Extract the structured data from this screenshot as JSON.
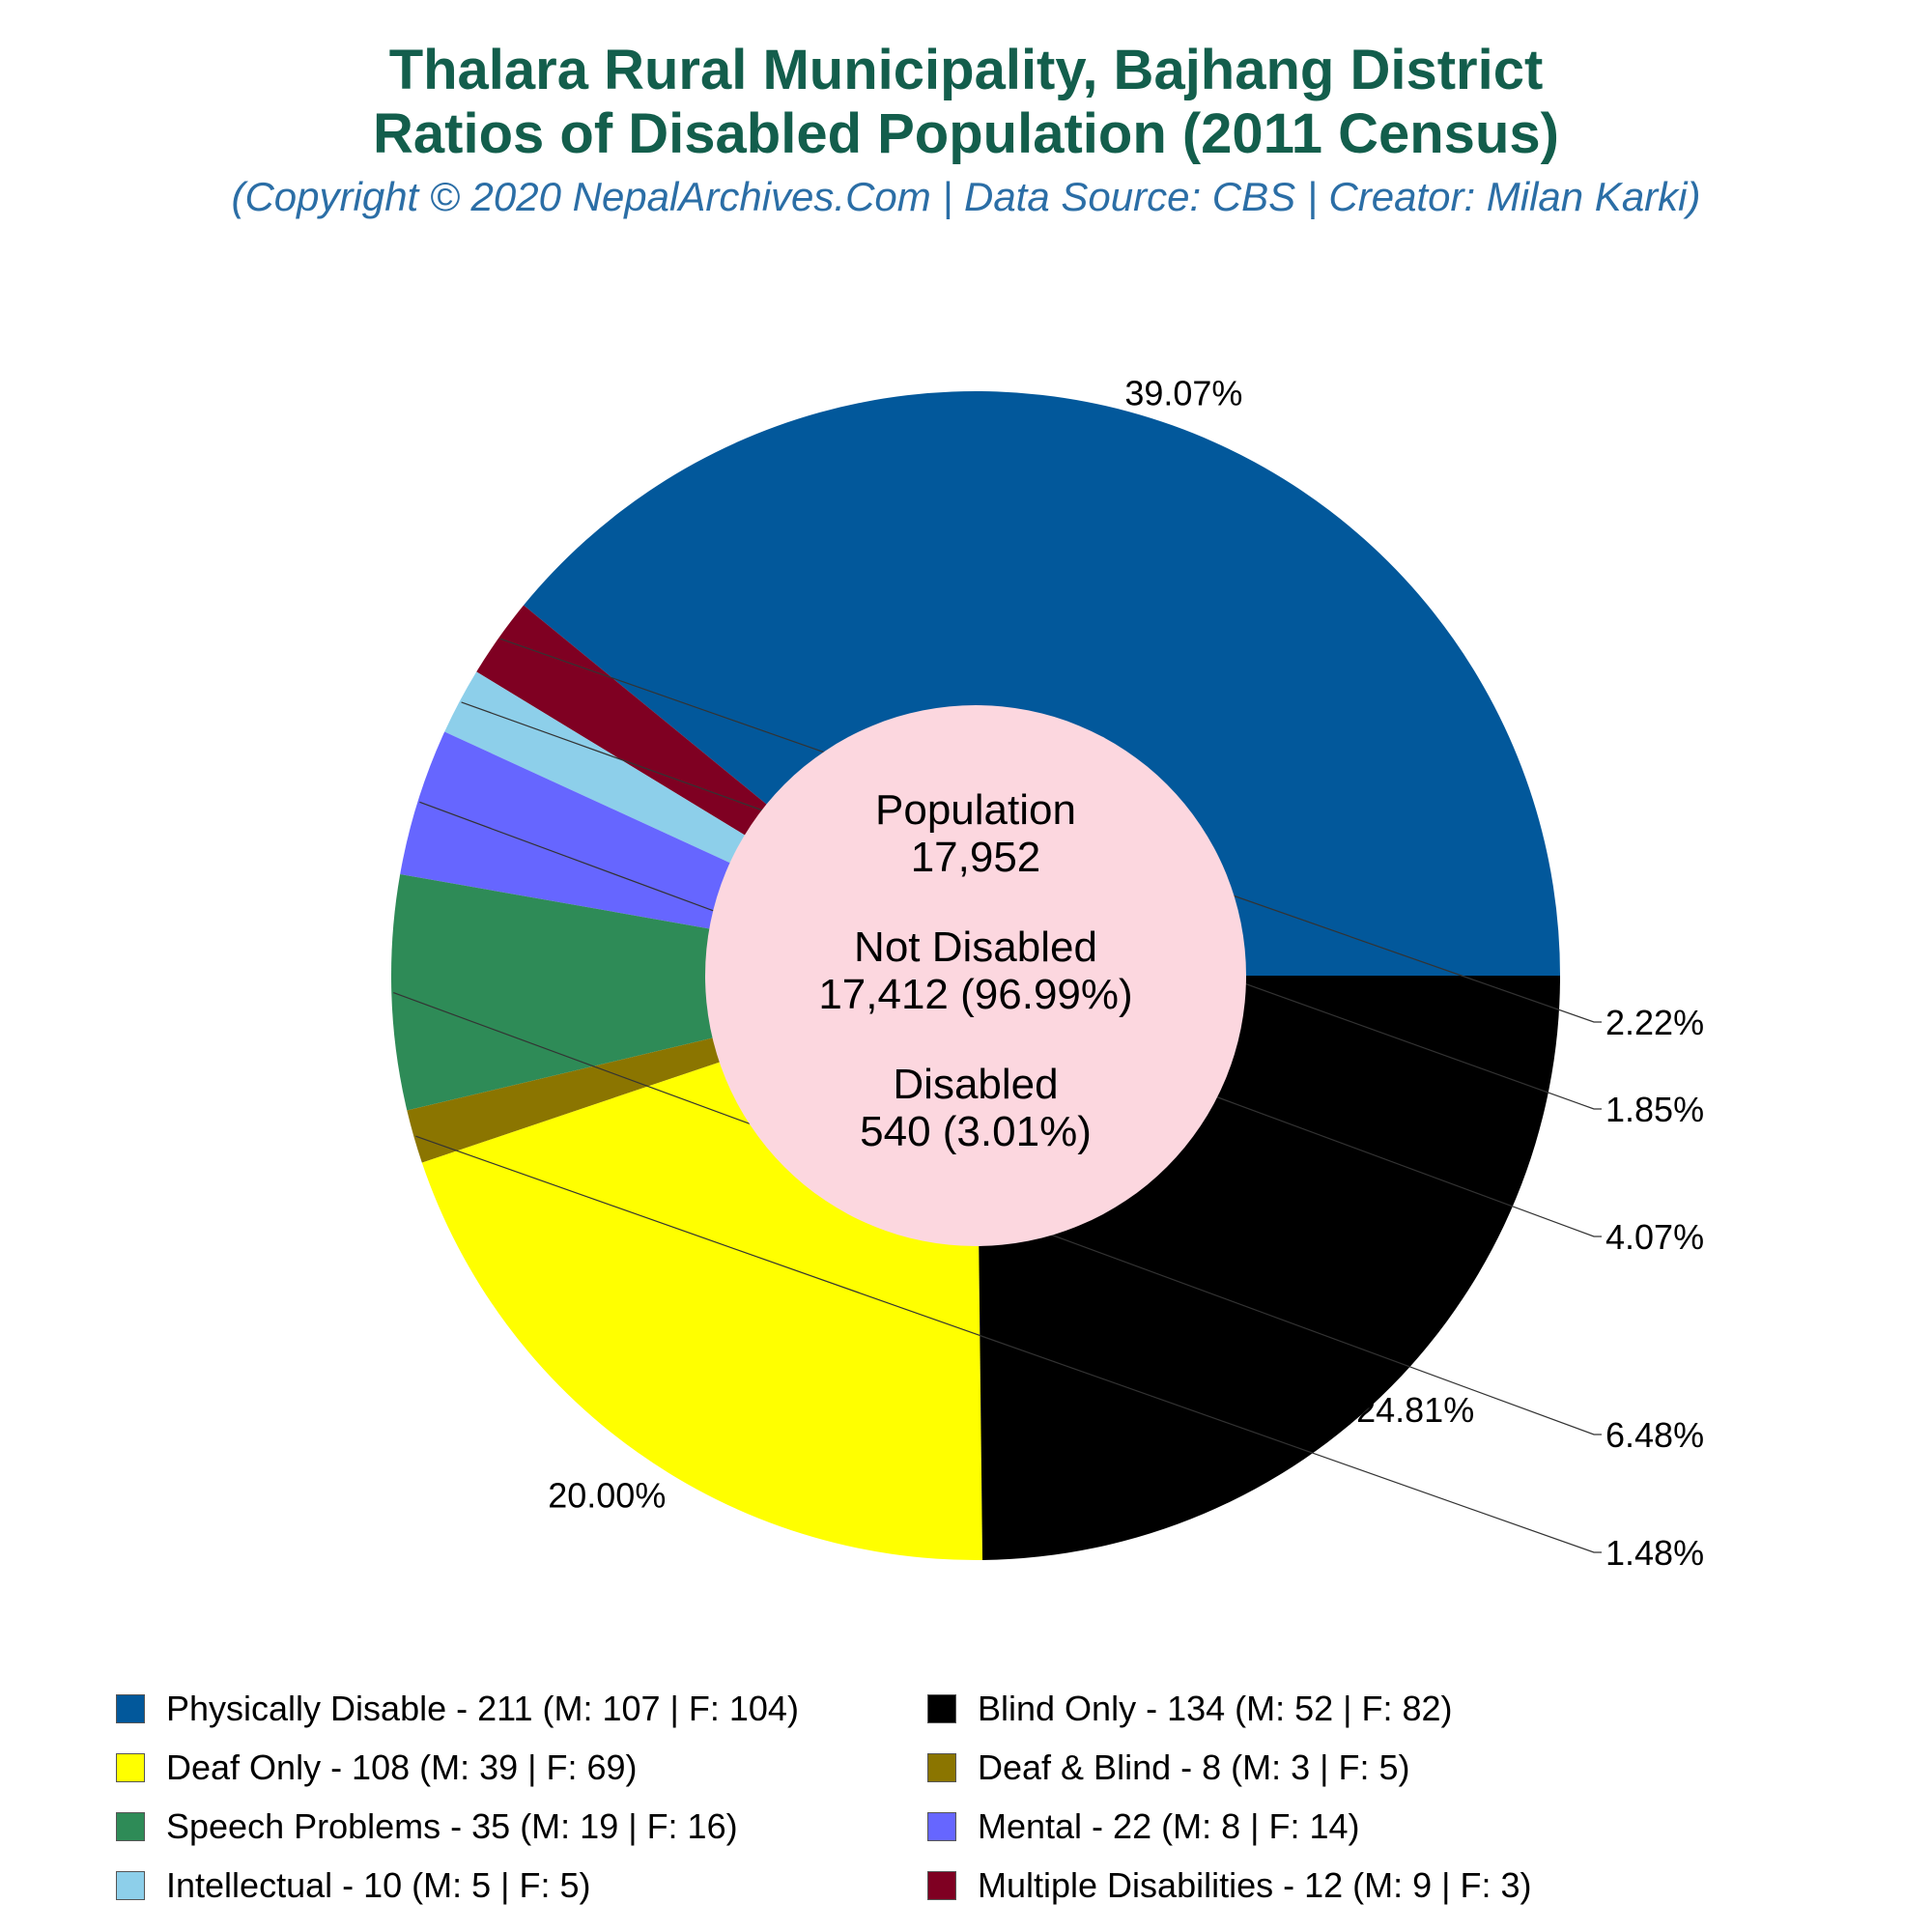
{
  "title_line1": "Thalara Rural Municipality, Bajhang District",
  "title_line2": "Ratios of Disabled Population (2011 Census)",
  "subtitle": "(Copyright © 2020 NepalArchives.Com | Data Source: CBS | Creator: Milan Karki)",
  "center": {
    "population_label": "Population",
    "population_value": "17,952",
    "not_disabled_label": "Not Disabled",
    "not_disabled_value": "17,412 (96.99%)",
    "disabled_label": "Disabled",
    "disabled_value": "540 (3.01%)"
  },
  "chart_data": {
    "type": "pie",
    "total_disabled": 540,
    "slices": [
      {
        "label": "Physically Disable",
        "value": 211,
        "male": 107,
        "female": 104,
        "percent": "39.07%",
        "color": "#02589b"
      },
      {
        "label": "Multiple Disabilities",
        "value": 12,
        "male": 9,
        "female": 3,
        "percent": "2.22%",
        "color": "#7f0022"
      },
      {
        "label": "Intellectual",
        "value": 10,
        "male": 5,
        "female": 5,
        "percent": "1.85%",
        "color": "#8dcfea"
      },
      {
        "label": "Mental",
        "value": 22,
        "male": 8,
        "female": 14,
        "percent": "4.07%",
        "color": "#6666ff"
      },
      {
        "label": "Speech Problems",
        "value": 35,
        "male": 19,
        "female": 16,
        "percent": "6.48%",
        "color": "#2e8b57"
      },
      {
        "label": "Deaf & Blind",
        "value": 8,
        "male": 3,
        "female": 5,
        "percent": "1.48%",
        "color": "#8b7500"
      },
      {
        "label": "Deaf Only",
        "value": 108,
        "male": 39,
        "female": 69,
        "percent": "20.00%",
        "color": "#ffff00"
      },
      {
        "label": "Blind Only",
        "value": 134,
        "male": 52,
        "female": 82,
        "percent": "24.81%",
        "color": "#000000"
      }
    ]
  },
  "legend": [
    {
      "text": "Physically Disable - 211 (M: 107 | F: 104)",
      "color": "#02589b"
    },
    {
      "text": "Blind Only - 134 (M: 52 | F: 82)",
      "color": "#000000"
    },
    {
      "text": "Deaf Only - 108 (M: 39 | F: 69)",
      "color": "#ffff00"
    },
    {
      "text": "Deaf & Blind - 8 (M: 3 | F: 5)",
      "color": "#8b7500"
    },
    {
      "text": "Speech Problems - 35 (M: 19 | F: 16)",
      "color": "#2e8b57"
    },
    {
      "text": "Mental - 22 (M: 8 | F: 14)",
      "color": "#6666ff"
    },
    {
      "text": "Intellectual - 10 (M: 5 | F: 5)",
      "color": "#8dcfea"
    },
    {
      "text": "Multiple Disabilities - 12 (M: 9 | F: 3)",
      "color": "#7f0022"
    }
  ]
}
